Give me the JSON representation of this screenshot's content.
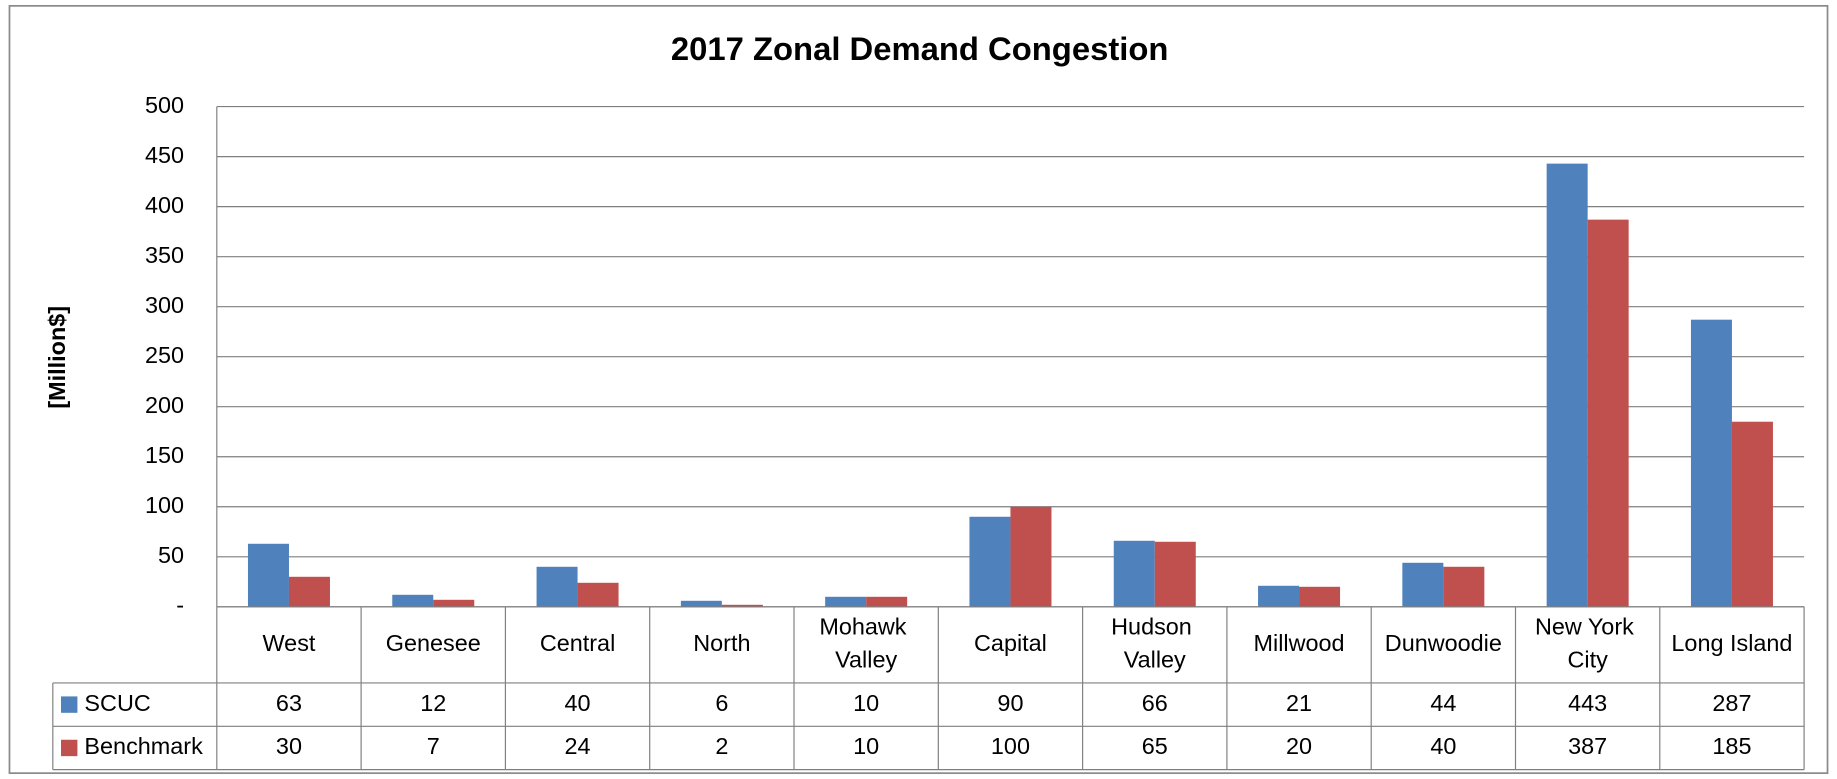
{
  "chart_data": {
    "type": "bar",
    "title": "2017 Zonal Demand Congestion",
    "y_label": "[Million$]",
    "categories": [
      "West",
      "Genesee",
      "Central",
      "North",
      "Mohawk Valley",
      "Capital",
      "Hudson Valley",
      "Millwood",
      "Dunwoodie",
      "New York City",
      "Long Island"
    ],
    "series": [
      {
        "name": "SCUC",
        "color": "#4f81bd",
        "values": [
          63,
          12,
          40,
          6,
          10,
          90,
          66,
          21,
          44,
          443,
          287
        ]
      },
      {
        "name": "Benchmark",
        "color": "#c0504d",
        "values": [
          30,
          7,
          24,
          2,
          10,
          100,
          65,
          20,
          40,
          387,
          185
        ]
      }
    ],
    "ylim": [
      0,
      500
    ],
    "yticks": [
      {
        "value": 0,
        "label": "-"
      },
      50,
      100,
      150,
      200,
      250,
      300,
      350,
      400,
      450,
      500
    ],
    "grid": true,
    "data_table": true
  }
}
